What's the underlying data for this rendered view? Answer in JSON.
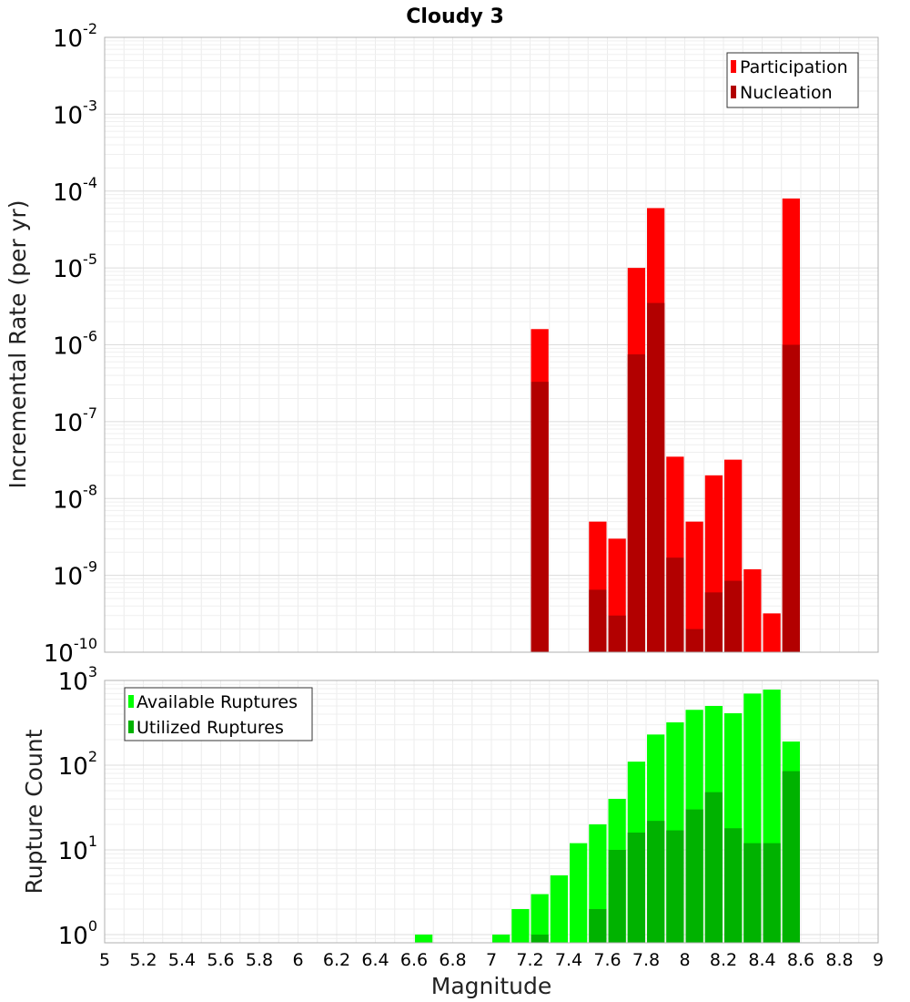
{
  "chart_data": [
    {
      "type": "bar",
      "title": "Cloudy 3",
      "xlabel": "",
      "ylabel": "Incremental Rate (per yr)",
      "yscale": "log",
      "ylim": [
        1e-10,
        0.01
      ],
      "xlim": [
        5,
        9
      ],
      "grid": true,
      "legend_position": "top-right",
      "bin_width": 0.1,
      "y_ticks": [
        {
          "base": "10",
          "exp": "-10",
          "value": 1e-10
        },
        {
          "base": "10",
          "exp": "-9",
          "value": 1e-09
        },
        {
          "base": "10",
          "exp": "-8",
          "value": 1e-08
        },
        {
          "base": "10",
          "exp": "-7",
          "value": 1e-07
        },
        {
          "base": "10",
          "exp": "-6",
          "value": 1e-06
        },
        {
          "base": "10",
          "exp": "-5",
          "value": 1e-05
        },
        {
          "base": "10",
          "exp": "-4",
          "value": 0.0001
        },
        {
          "base": "10",
          "exp": "-3",
          "value": 0.001
        },
        {
          "base": "10",
          "exp": "-2",
          "value": 0.01
        }
      ],
      "series": [
        {
          "name": "Participation",
          "color": "#ff0000",
          "x": [
            7.25,
            7.55,
            7.65,
            7.75,
            7.85,
            7.95,
            8.05,
            8.15,
            8.25,
            8.35,
            8.45,
            8.55
          ],
          "values": [
            1.6e-06,
            5e-09,
            3e-09,
            1e-05,
            6e-05,
            3.5e-08,
            5e-09,
            2e-08,
            3.2e-08,
            1.2e-09,
            3.2e-10,
            8e-05
          ]
        },
        {
          "name": "Nucleation",
          "color": "#b20000",
          "x": [
            7.25,
            7.55,
            7.65,
            7.75,
            7.85,
            7.95,
            8.05,
            8.15,
            8.25,
            8.55
          ],
          "values": [
            3.3e-07,
            6.5e-10,
            3e-10,
            7.5e-07,
            3.5e-06,
            1.7e-09,
            2e-10,
            6e-10,
            8.5e-10,
            1e-06
          ]
        }
      ]
    },
    {
      "type": "bar",
      "title": "",
      "xlabel": "Magnitude",
      "ylabel": "Rupture Count",
      "yscale": "log",
      "ylim": [
        0.8,
        1000
      ],
      "xlim": [
        5,
        9
      ],
      "grid": true,
      "legend_position": "top-left",
      "bin_width": 0.1,
      "x_ticks": [
        "5",
        "5.2",
        "5.4",
        "5.6",
        "5.8",
        "6",
        "6.2",
        "6.4",
        "6.6",
        "6.8",
        "7",
        "7.2",
        "7.4",
        "7.6",
        "7.8",
        "8",
        "8.2",
        "8.4",
        "8.6",
        "8.8",
        "9"
      ],
      "y_ticks": [
        {
          "base": "10",
          "exp": "0",
          "value": 1
        },
        {
          "base": "10",
          "exp": "1",
          "value": 10
        },
        {
          "base": "10",
          "exp": "2",
          "value": 100
        },
        {
          "base": "10",
          "exp": "3",
          "value": 1000
        }
      ],
      "series": [
        {
          "name": "Available Ruptures",
          "color": "#00ff00",
          "x": [
            6.65,
            7.05,
            7.15,
            7.25,
            7.35,
            7.45,
            7.55,
            7.65,
            7.75,
            7.85,
            7.95,
            8.05,
            8.15,
            8.25,
            8.35,
            8.45,
            8.55
          ],
          "values": [
            1,
            1,
            2,
            3,
            5,
            12,
            20,
            40,
            110,
            230,
            320,
            450,
            500,
            410,
            700,
            780,
            190
          ]
        },
        {
          "name": "Utilized Ruptures",
          "color": "#00b200",
          "x": [
            7.25,
            7.55,
            7.65,
            7.75,
            7.85,
            7.95,
            8.05,
            8.15,
            8.25,
            8.35,
            8.45,
            8.55
          ],
          "values": [
            1,
            2,
            10,
            16,
            22,
            17,
            30,
            48,
            18,
            12,
            12,
            85
          ]
        }
      ]
    }
  ]
}
